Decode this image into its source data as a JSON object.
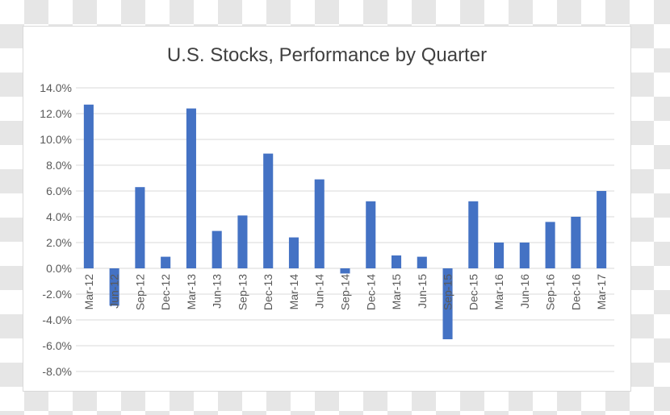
{
  "chart_data": {
    "type": "bar",
    "title": "U.S. Stocks, Performance by Quarter",
    "xlabel": "",
    "ylabel": "",
    "categories": [
      "Mar-12",
      "Jun-12",
      "Sep-12",
      "Dec-12",
      "Mar-13",
      "Jun-13",
      "Sep-13",
      "Dec-13",
      "Mar-14",
      "Jun-14",
      "Sep-14",
      "Dec-14",
      "Mar-15",
      "Jun-15",
      "Sep-15",
      "Dec-15",
      "Mar-16",
      "Jun-16",
      "Sep-16",
      "Dec-16",
      "Mar-17"
    ],
    "values": [
      12.7,
      -2.9,
      6.3,
      0.9,
      12.4,
      2.9,
      4.1,
      8.9,
      2.4,
      6.9,
      -0.4,
      5.2,
      1.0,
      0.9,
      -5.5,
      5.2,
      2.0,
      2.0,
      3.6,
      4.0,
      6.0
    ],
    "ylim": [
      -8,
      14
    ],
    "yticks": [
      "14.0%",
      "12.0%",
      "10.0%",
      "8.0%",
      "6.0%",
      "4.0%",
      "2.0%",
      "0.0%",
      "-2.0%",
      "-4.0%",
      "-6.0%",
      "-8.0%"
    ],
    "ytick_values": [
      14,
      12,
      10,
      8,
      6,
      4,
      2,
      0,
      -2,
      -4,
      -6,
      -8
    ],
    "grid": true,
    "legend": "none",
    "colors": {
      "bar": "#4472c4",
      "grid": "#d9d9d9",
      "text": "#595959",
      "title": "#404040"
    }
  }
}
